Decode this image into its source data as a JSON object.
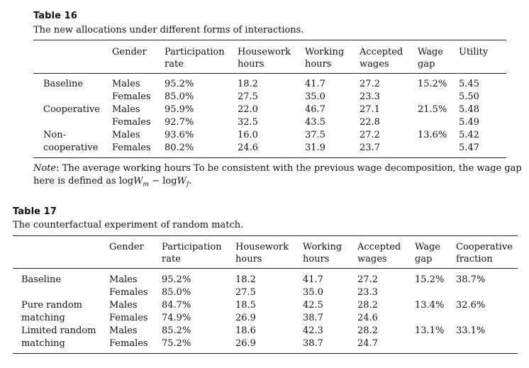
{
  "table16": {
    "title": "Table 16",
    "caption": "The new allocations under different forms of interactions.",
    "headers": {
      "gender": "Gender",
      "participation_1": "Participation",
      "participation_2": "rate",
      "housework_1": "Housework",
      "housework_2": "hours",
      "working_1": "Working",
      "working_2": "hours",
      "accepted_1": "Accepted",
      "accepted_2": "wages",
      "wagegap_1": "Wage",
      "wagegap_2": "gap",
      "utility": "Utility"
    },
    "rows": [
      {
        "group": "Baseline",
        "gender": "Males",
        "participation": "95.2%",
        "housework": "18.2",
        "working": "41.7",
        "accepted": "27.2",
        "wagegap": "15.2%",
        "utility": "5.45"
      },
      {
        "group": "",
        "gender": "Females",
        "participation": "85.0%",
        "housework": "27.5",
        "working": "35.0",
        "accepted": "23.3",
        "wagegap": "",
        "utility": "5.50"
      },
      {
        "group": "Cooperative",
        "gender": "Males",
        "participation": "95.9%",
        "housework": "22.0",
        "working": "46.7",
        "accepted": "27.1",
        "wagegap": "21.5%",
        "utility": "5.48"
      },
      {
        "group": "",
        "gender": "Females",
        "participation": "92.7%",
        "housework": "32.5",
        "working": "43.5",
        "accepted": "22.8",
        "wagegap": "",
        "utility": "5.49"
      },
      {
        "group": "Non-",
        "gender": "Males",
        "participation": "93.6%",
        "housework": "16.0",
        "working": "37.5",
        "accepted": "27.2",
        "wagegap": "13.6%",
        "utility": "5.42"
      },
      {
        "group": "cooperative",
        "gender": "Females",
        "participation": "80.2%",
        "housework": "24.6",
        "working": "31.9",
        "accepted": "23.7",
        "wagegap": "",
        "utility": "5.47"
      }
    ],
    "note": {
      "label": "Note",
      "text1": ": The average working hours To be consistent with the previous wage decomposition, the wage gap",
      "text2": "here is defined as log",
      "w_m": "W",
      "sub_m": "m",
      "minus": " − log",
      "w_f": "W",
      "sub_f": "f",
      "end": "."
    }
  },
  "table17": {
    "title": "Table 17",
    "caption": "The counterfactual experiment of random match.",
    "headers": {
      "gender": "Gender",
      "participation_1": "Participation",
      "participation_2": "rate",
      "housework_1": "Housework",
      "housework_2": "hours",
      "working_1": "Working",
      "working_2": "hours",
      "accepted_1": "Accepted",
      "accepted_2": "wages",
      "wagegap_1": "Wage",
      "wagegap_2": "gap",
      "coop_1": "Cooperative",
      "coop_2": "fraction"
    },
    "rows": [
      {
        "group": "Baseline",
        "gender": "Males",
        "participation": "95.2%",
        "housework": "18.2",
        "working": "41.7",
        "accepted": "27.2",
        "wagegap": "15.2%",
        "coop": "38.7%"
      },
      {
        "group": "",
        "gender": "Females",
        "participation": "85.0%",
        "housework": "27.5",
        "working": "35.0",
        "accepted": "23.3",
        "wagegap": "",
        "coop": ""
      },
      {
        "group": "Pure random",
        "gender": "Males",
        "participation": "84.7%",
        "housework": "18.5",
        "working": "42.5",
        "accepted": "28.2",
        "wagegap": "13.4%",
        "coop": "32.6%"
      },
      {
        "group": "matching",
        "gender": "Females",
        "participation": "74.9%",
        "housework": "26.9",
        "working": "38.7",
        "accepted": "24.6",
        "wagegap": "",
        "coop": ""
      },
      {
        "group": "Limited random",
        "gender": "Males",
        "participation": "85.2%",
        "housework": "18.6",
        "working": "42.3",
        "accepted": "28.2",
        "wagegap": "13.1%",
        "coop": "33.1%"
      },
      {
        "group": "matching",
        "gender": "Females",
        "participation": "75.2%",
        "housework": "26.9",
        "working": "38.7",
        "accepted": "24.7",
        "wagegap": "",
        "coop": ""
      }
    ]
  }
}
